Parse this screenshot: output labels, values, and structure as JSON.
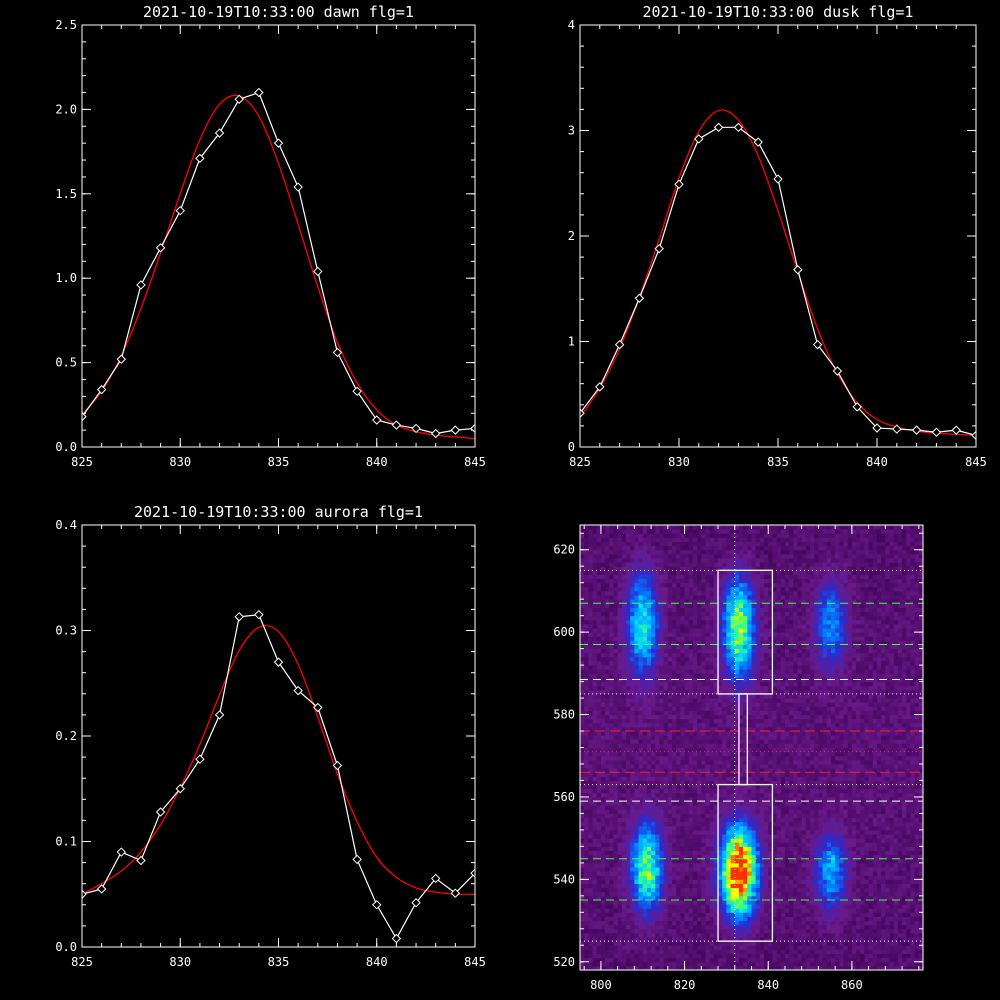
{
  "chart_data": [
    {
      "type": "line",
      "title": "2021-10-19T10:33:00 dawn flg=1",
      "xlim": [
        825,
        845
      ],
      "ylim": [
        0,
        2.5
      ],
      "xticks": [
        825,
        830,
        835,
        840,
        845
      ],
      "xtick_labels": [
        "825",
        "830",
        "835",
        "840",
        "845"
      ],
      "yticks": [
        0,
        0.5,
        1.0,
        1.5,
        2.0,
        2.5
      ],
      "ytick_labels": [
        "0.0",
        "0.5",
        "1.0",
        "1.5",
        "2.0",
        "2.5"
      ],
      "series": [
        {
          "color": "#ffffff",
          "marker": "diamond",
          "x": [
            825,
            826,
            827,
            828,
            829,
            830,
            831,
            832,
            833,
            834,
            835,
            836,
            837,
            838,
            839,
            840,
            841,
            842,
            843,
            844,
            845
          ],
          "y": [
            0.18,
            0.34,
            0.52,
            0.96,
            1.18,
            1.4,
            1.71,
            1.86,
            2.06,
            2.1,
            1.8,
            1.54,
            1.04,
            0.56,
            0.33,
            0.16,
            0.13,
            0.11,
            0.08,
            0.1,
            0.11
          ]
        },
        {
          "color": "#ff0000",
          "x": [
            825,
            826,
            827,
            828,
            829,
            830,
            831,
            832,
            833,
            834,
            835,
            836,
            837,
            838,
            839,
            840,
            841,
            842,
            843,
            844,
            845
          ],
          "y": [
            0.19,
            0.33,
            0.54,
            0.82,
            1.15,
            1.5,
            1.82,
            2.03,
            2.08,
            1.96,
            1.68,
            1.32,
            0.95,
            0.62,
            0.38,
            0.22,
            0.13,
            0.09,
            0.07,
            0.06,
            0.05
          ]
        }
      ]
    },
    {
      "type": "line",
      "title": "2021-10-19T10:33:00 dusk flg=1",
      "xlim": [
        825,
        845
      ],
      "ylim": [
        0,
        4
      ],
      "xticks": [
        825,
        830,
        835,
        840,
        845
      ],
      "xtick_labels": [
        "825",
        "830",
        "835",
        "840",
        "845"
      ],
      "yticks": [
        0,
        1,
        2,
        3,
        4
      ],
      "ytick_labels": [
        "0",
        "1",
        "2",
        "3",
        "4"
      ],
      "series": [
        {
          "color": "#ffffff",
          "marker": "diamond",
          "x": [
            825,
            826,
            827,
            828,
            829,
            830,
            831,
            832,
            833,
            834,
            835,
            836,
            837,
            838,
            839,
            840,
            841,
            842,
            843,
            844,
            845
          ],
          "y": [
            0.32,
            0.57,
            0.97,
            1.41,
            1.88,
            2.49,
            2.92,
            3.03,
            3.03,
            2.89,
            2.54,
            1.68,
            0.97,
            0.72,
            0.38,
            0.18,
            0.17,
            0.16,
            0.14,
            0.16,
            0.11
          ]
        },
        {
          "color": "#ff0000",
          "x": [
            825,
            826,
            827,
            828,
            829,
            830,
            831,
            832,
            833,
            834,
            835,
            836,
            837,
            838,
            839,
            840,
            841,
            842,
            843,
            844,
            845
          ],
          "y": [
            0.28,
            0.56,
            0.93,
            1.42,
            1.97,
            2.55,
            2.99,
            3.19,
            3.1,
            2.76,
            2.24,
            1.66,
            1.12,
            0.7,
            0.42,
            0.26,
            0.19,
            0.15,
            0.13,
            0.12,
            0.11
          ]
        }
      ]
    },
    {
      "type": "line",
      "title": "2021-10-19T10:33:00 aurora flg=1",
      "xlim": [
        825,
        845
      ],
      "ylim": [
        0,
        0.4
      ],
      "xticks": [
        825,
        830,
        835,
        840,
        845
      ],
      "xtick_labels": [
        "825",
        "830",
        "835",
        "840",
        "845"
      ],
      "yticks": [
        0,
        0.1,
        0.2,
        0.3,
        0.4
      ],
      "ytick_labels": [
        "0.0",
        "0.1",
        "0.2",
        "0.3",
        "0.4"
      ],
      "series": [
        {
          "color": "#ffffff",
          "marker": "diamond",
          "x": [
            825,
            826,
            827,
            828,
            829,
            830,
            831,
            832,
            833,
            834,
            835,
            836,
            837,
            838,
            839,
            840,
            841,
            842,
            843,
            844,
            845
          ],
          "y": [
            0.05,
            0.055,
            0.09,
            0.082,
            0.128,
            0.15,
            0.178,
            0.22,
            0.313,
            0.315,
            0.27,
            0.243,
            0.227,
            0.172,
            0.083,
            0.04,
            0.008,
            0.042,
            0.065,
            0.051,
            0.07
          ]
        },
        {
          "color": "#ff0000",
          "x": [
            825,
            826,
            827,
            828,
            829,
            830,
            831,
            832,
            833,
            834,
            835,
            836,
            837,
            838,
            839,
            840,
            841,
            842,
            843,
            844,
            845
          ],
          "y": [
            0.05,
            0.06,
            0.072,
            0.09,
            0.116,
            0.151,
            0.192,
            0.239,
            0.281,
            0.303,
            0.299,
            0.268,
            0.218,
            0.164,
            0.119,
            0.085,
            0.066,
            0.056,
            0.052,
            0.05,
            0.05
          ]
        }
      ]
    },
    {
      "type": "heatmap",
      "title": "",
      "xlim": [
        795,
        877
      ],
      "ylim": [
        518,
        626
      ],
      "xticks": [
        800,
        820,
        840,
        860
      ],
      "xtick_labels": [
        "800",
        "820",
        "840",
        "860"
      ],
      "yticks": [
        520,
        540,
        560,
        580,
        600,
        620
      ],
      "ytick_labels": [
        "520",
        "540",
        "560",
        "580",
        "600",
        "620"
      ],
      "colormap": [
        "#000000",
        "#3a0050",
        "#6a1a8a",
        "#2a2ad0",
        "#0080ff",
        "#00d0ff",
        "#30ff90",
        "#c0ff00",
        "#ffff00",
        "#ff3000"
      ],
      "emission_sources": [
        {
          "x": 811,
          "y": 543,
          "sx": 2.5,
          "sy": 7,
          "amp": 0.55
        },
        {
          "x": 810,
          "y": 602,
          "sx": 2.5,
          "sy": 8,
          "amp": 0.45
        },
        {
          "x": 833,
          "y": 542,
          "sx": 2.8,
          "sy": 7,
          "amp": 1.0
        },
        {
          "x": 833,
          "y": 601,
          "sx": 2.5,
          "sy": 8,
          "amp": 0.6
        },
        {
          "x": 855,
          "y": 542,
          "sx": 2.5,
          "sy": 6,
          "amp": 0.35
        },
        {
          "x": 855,
          "y": 602,
          "sx": 2.5,
          "sy": 7,
          "amp": 0.3
        }
      ],
      "vertical_dotted_line": 832,
      "dotted_white_lines": [
        615,
        585,
        563,
        525
      ],
      "dashed_white_lines": [
        588.5,
        559
      ],
      "dashed_green_lines": [
        607,
        597,
        545,
        535
      ],
      "dashed_red_lines": [
        576,
        566
      ],
      "dotted_red_lines": [
        571
      ],
      "boxes": [
        {
          "x0": 828,
          "x1": 841,
          "y0": 585,
          "y1": 615
        },
        {
          "x0": 828,
          "x1": 841,
          "y0": 525,
          "y1": 563
        },
        {
          "x0": 833,
          "x1": 835,
          "y0": 563,
          "y1": 585
        }
      ]
    }
  ]
}
